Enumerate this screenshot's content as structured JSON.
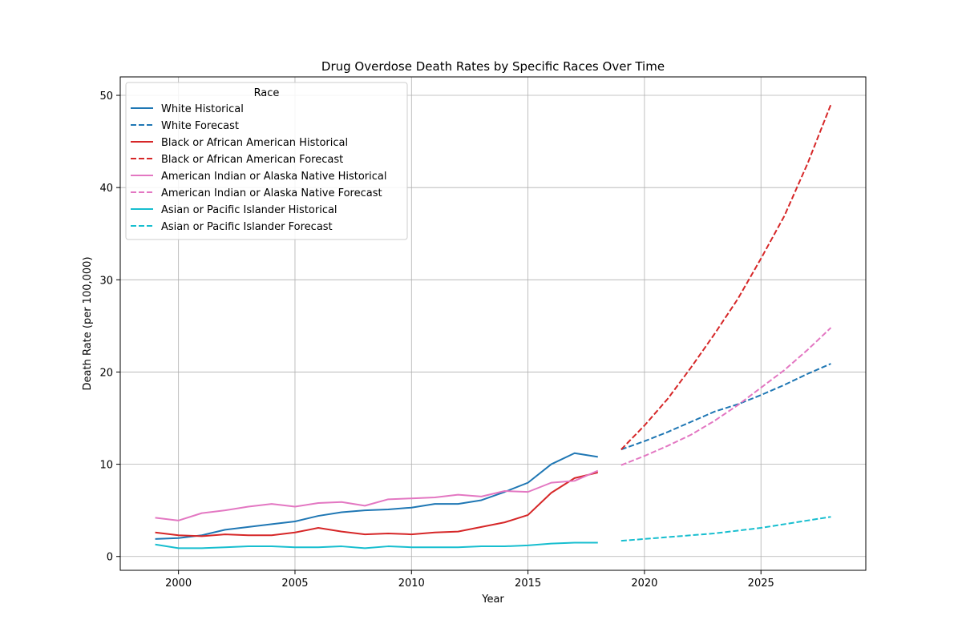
{
  "chart_data": {
    "type": "line",
    "title": "Drug Overdose Death Rates by Specific Races Over Time",
    "xlabel": "Year",
    "ylabel": "Death Rate (per 100,000)",
    "xlim": [
      1997.5,
      2029.5
    ],
    "ylim": [
      -1.5,
      52.0
    ],
    "xticks": [
      2000,
      2005,
      2010,
      2015,
      2020,
      2025
    ],
    "yticks": [
      0,
      10,
      20,
      30,
      40,
      50
    ],
    "grid": true,
    "legend": {
      "title": "Race",
      "position": "top-left"
    },
    "series": [
      {
        "name": "White Historical",
        "color": "#1f77b4",
        "style": "solid",
        "x": [
          1999,
          2000,
          2001,
          2002,
          2003,
          2004,
          2005,
          2006,
          2007,
          2008,
          2009,
          2010,
          2011,
          2012,
          2013,
          2014,
          2015,
          2016,
          2017,
          2018
        ],
        "values": [
          1.9,
          2.0,
          2.3,
          2.9,
          3.2,
          3.5,
          3.8,
          4.4,
          4.8,
          5.0,
          5.1,
          5.3,
          5.7,
          5.7,
          6.1,
          7.0,
          8.0,
          10.0,
          11.2,
          10.8
        ]
      },
      {
        "name": "White Forecast",
        "color": "#1f77b4",
        "style": "dashed",
        "x": [
          2019,
          2020,
          2021,
          2022,
          2023,
          2024,
          2025,
          2026,
          2027,
          2028
        ],
        "values": [
          11.6,
          12.5,
          13.5,
          14.6,
          15.7,
          16.5,
          17.5,
          18.6,
          19.8,
          20.9
        ]
      },
      {
        "name": "Black or African American Historical",
        "color": "#d62728",
        "style": "solid",
        "x": [
          1999,
          2000,
          2001,
          2002,
          2003,
          2004,
          2005,
          2006,
          2007,
          2008,
          2009,
          2010,
          2011,
          2012,
          2013,
          2014,
          2015,
          2016,
          2017,
          2018
        ],
        "values": [
          2.6,
          2.3,
          2.2,
          2.4,
          2.3,
          2.3,
          2.6,
          3.1,
          2.7,
          2.4,
          2.5,
          2.4,
          2.6,
          2.7,
          3.2,
          3.7,
          4.5,
          6.9,
          8.5,
          9.1
        ]
      },
      {
        "name": "Black or African American Forecast",
        "color": "#d62728",
        "style": "dashed",
        "x": [
          2019,
          2020,
          2021,
          2022,
          2023,
          2024,
          2025,
          2026,
          2027,
          2028
        ],
        "values": [
          11.6,
          14.2,
          17.1,
          20.5,
          24.1,
          27.9,
          32.3,
          36.9,
          42.6,
          49.0
        ]
      },
      {
        "name": "American Indian or Alaska Native Historical",
        "color": "#e377c2",
        "style": "solid",
        "x": [
          1999,
          2000,
          2001,
          2002,
          2003,
          2004,
          2005,
          2006,
          2007,
          2008,
          2009,
          2010,
          2011,
          2012,
          2013,
          2014,
          2015,
          2016,
          2017,
          2018
        ],
        "values": [
          4.2,
          3.9,
          4.7,
          5.0,
          5.4,
          5.7,
          5.4,
          5.8,
          5.9,
          5.5,
          6.2,
          6.3,
          6.4,
          6.7,
          6.5,
          7.1,
          7.0,
          8.0,
          8.2,
          9.3
        ]
      },
      {
        "name": "American Indian or Alaska Native Forecast",
        "color": "#e377c2",
        "style": "dashed",
        "x": [
          2019,
          2020,
          2021,
          2022,
          2023,
          2024,
          2025,
          2026,
          2027,
          2028
        ],
        "values": [
          9.9,
          10.9,
          12.0,
          13.2,
          14.7,
          16.4,
          18.3,
          20.2,
          22.4,
          24.8
        ]
      },
      {
        "name": "Asian or Pacific Islander Historical",
        "color": "#17becf",
        "style": "solid",
        "x": [
          1999,
          2000,
          2001,
          2002,
          2003,
          2004,
          2005,
          2006,
          2007,
          2008,
          2009,
          2010,
          2011,
          2012,
          2013,
          2014,
          2015,
          2016,
          2017,
          2018
        ],
        "values": [
          1.3,
          0.9,
          0.9,
          1.0,
          1.1,
          1.1,
          1.0,
          1.0,
          1.1,
          0.9,
          1.1,
          1.0,
          1.0,
          1.0,
          1.1,
          1.1,
          1.2,
          1.4,
          1.5,
          1.5
        ]
      },
      {
        "name": "Asian or Pacific Islander Forecast",
        "color": "#17becf",
        "style": "dashed",
        "x": [
          2019,
          2020,
          2021,
          2022,
          2023,
          2024,
          2025,
          2026,
          2027,
          2028
        ],
        "values": [
          1.7,
          1.9,
          2.1,
          2.3,
          2.5,
          2.8,
          3.1,
          3.5,
          3.9,
          4.3
        ]
      }
    ]
  }
}
